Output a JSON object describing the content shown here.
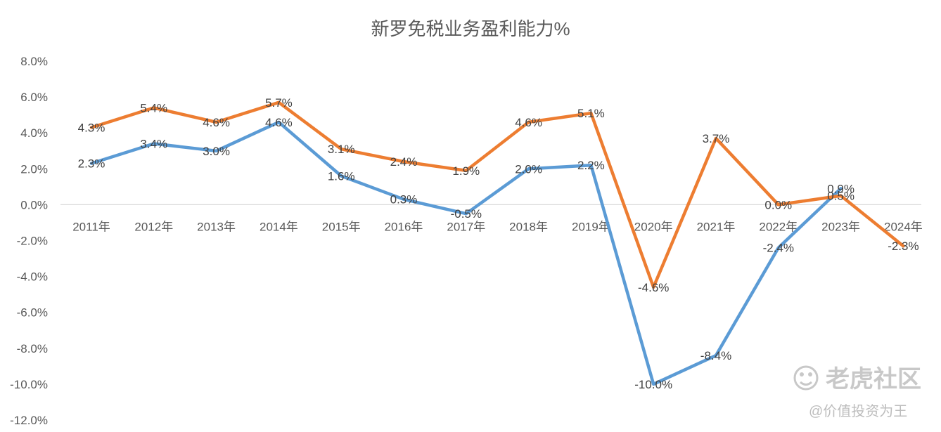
{
  "chart_data": {
    "type": "line",
    "title": "新罗免税业务盈利能力%",
    "xlabel": "",
    "ylabel": "",
    "categories": [
      "2011年",
      "2012年",
      "2013年",
      "2014年",
      "2015年",
      "2016年",
      "2017年",
      "2018年",
      "2019年",
      "2020年",
      "2021年",
      "2022年",
      "2023年",
      "2024年"
    ],
    "ylim": [
      -12.0,
      8.0
    ],
    "yticks": [
      "8.0%",
      "6.0%",
      "4.0%",
      "2.0%",
      "0.0%",
      "-2.0%",
      "-4.0%",
      "-6.0%",
      "-8.0%",
      "-10.0%",
      "-12.0%"
    ],
    "ytick_values": [
      8,
      6,
      4,
      2,
      0,
      -2,
      -4,
      -6,
      -8,
      -10,
      -12
    ],
    "grid": false,
    "legend": "none",
    "series": [
      {
        "color": "#5b9bd5",
        "values": [
          2.3,
          3.4,
          3.0,
          4.6,
          1.6,
          0.3,
          -0.5,
          2.0,
          2.2,
          -10.0,
          -8.4,
          -2.4,
          0.9,
          null
        ],
        "labels": [
          "2.3%",
          "3.4%",
          "3.0%",
          "4.6%",
          "1.6%",
          "0.3%",
          "-0.5%",
          "2.0%",
          "2.2%",
          "-10.0%",
          "-8.4%",
          "-2.4%",
          "0.9%",
          null
        ]
      },
      {
        "color": "#ed7d31",
        "values": [
          4.3,
          5.4,
          4.6,
          5.7,
          3.1,
          2.4,
          1.9,
          4.6,
          5.1,
          -4.6,
          3.7,
          0.0,
          0.5,
          -2.3
        ],
        "labels": [
          "4.3%",
          "5.4%",
          "4.6%",
          "5.7%",
          "3.1%",
          "2.4%",
          "1.9%",
          "4.6%",
          "5.1%",
          "-4.6%",
          "3.7%",
          "0.0%",
          "0.5%",
          "-2.3%"
        ]
      }
    ]
  },
  "watermark": {
    "brand": "老虎社区",
    "author": "@价值投资为王",
    "icon": "tiger-logo-icon"
  }
}
